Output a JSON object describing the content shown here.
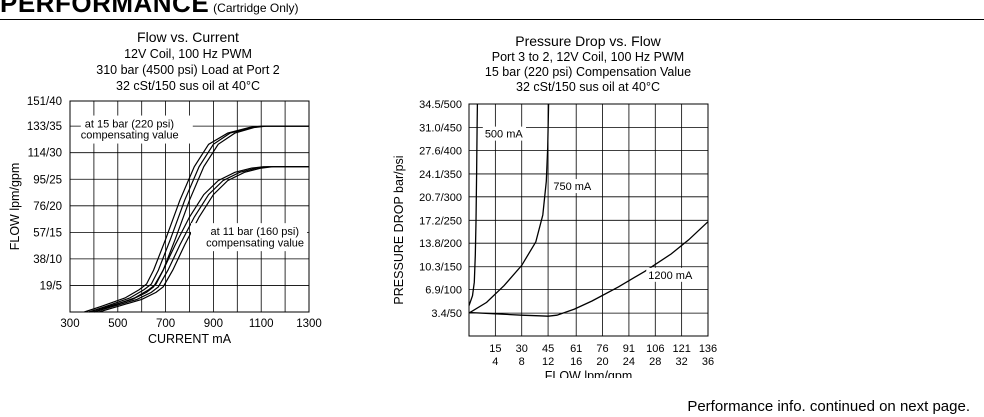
{
  "header": {
    "title": "PERFORMANCE",
    "subtitle": "(Cartridge Only)"
  },
  "footer": {
    "note": "Performance info. continued on next page."
  },
  "colors": {
    "line": "#000000",
    "background": "#ffffff"
  },
  "chart_data": [
    {
      "type": "line",
      "title": "Flow vs. Current",
      "subtitle_lines": [
        "12V Coil, 100 Hz PWM",
        "310 bar (4500 psi) Load at Port 2",
        "32 cSt/150 sus oil at 40°C"
      ],
      "xlabel": "CURRENT  mA",
      "ylabel": "FLOW  lpm/gpm",
      "xlim": [
        300,
        1300
      ],
      "ylim": [
        0,
        151
      ],
      "x_ticks": [
        {
          "value": 300,
          "label": "300"
        },
        {
          "value": 500,
          "label": "500"
        },
        {
          "value": 700,
          "label": "700"
        },
        {
          "value": 900,
          "label": "900"
        },
        {
          "value": 1100,
          "label": "1100"
        },
        {
          "value": 1300,
          "label": "1300"
        }
      ],
      "y_ticks": [
        {
          "value": 19,
          "label": "19/5"
        },
        {
          "value": 38,
          "label": "38/10"
        },
        {
          "value": 57,
          "label": "57/15"
        },
        {
          "value": 76,
          "label": "76/20"
        },
        {
          "value": 95,
          "label": "95/25"
        },
        {
          "value": 114,
          "label": "114/30"
        },
        {
          "value": 133,
          "label": "133/35"
        },
        {
          "value": 151,
          "label": "151/40"
        }
      ],
      "grid": true,
      "annotations": [
        {
          "text": "at 15 bar (220 psi)",
          "x": 320,
          "y": 132
        },
        {
          "text": "compensating value",
          "x": 320,
          "y": 124
        },
        {
          "text": "at 11 bar (160 psi)",
          "x": 1300,
          "y": 55
        },
        {
          "text": "compensating value",
          "x": 1300,
          "y": 47
        }
      ],
      "series": [
        {
          "values": [
            [
              360,
              0
            ],
            [
              430,
              4
            ],
            [
              530,
              10
            ],
            [
              590,
              16
            ],
            [
              620,
              20
            ],
            [
              650,
              30
            ],
            [
              700,
              52
            ],
            [
              760,
              80
            ],
            [
              820,
              104
            ],
            [
              880,
              120
            ],
            [
              960,
              128
            ],
            [
              1050,
              132
            ],
            [
              1100,
              133
            ],
            [
              1300,
              133
            ]
          ]
        },
        {
          "values": [
            [
              380,
              0
            ],
            [
              450,
              4
            ],
            [
              550,
              10
            ],
            [
              610,
              16
            ],
            [
              640,
              20
            ],
            [
              670,
              30
            ],
            [
              720,
              52
            ],
            [
              780,
              80
            ],
            [
              840,
              104
            ],
            [
              900,
              120
            ],
            [
              970,
              128
            ],
            [
              1060,
              132
            ],
            [
              1110,
              133
            ],
            [
              1300,
              133
            ]
          ]
        },
        {
          "values": [
            [
              400,
              0
            ],
            [
              470,
              4
            ],
            [
              570,
              10
            ],
            [
              630,
              16
            ],
            [
              660,
              20
            ],
            [
              690,
              30
            ],
            [
              740,
              52
            ],
            [
              800,
              80
            ],
            [
              860,
              104
            ],
            [
              920,
              120
            ],
            [
              990,
              128
            ],
            [
              1070,
              132
            ],
            [
              1120,
              133
            ],
            [
              1300,
              133
            ]
          ]
        },
        {
          "values": [
            [
              380,
              0
            ],
            [
              460,
              4
            ],
            [
              560,
              9
            ],
            [
              620,
              14
            ],
            [
              650,
              18
            ],
            [
              690,
              30
            ],
            [
              740,
              48
            ],
            [
              800,
              68
            ],
            [
              860,
              84
            ],
            [
              920,
              94
            ],
            [
              990,
              100
            ],
            [
              1060,
              103
            ],
            [
              1110,
              104
            ],
            [
              1300,
              104
            ]
          ]
        },
        {
          "values": [
            [
              400,
              0
            ],
            [
              480,
              4
            ],
            [
              580,
              9
            ],
            [
              640,
              14
            ],
            [
              670,
              18
            ],
            [
              710,
              30
            ],
            [
              760,
              48
            ],
            [
              820,
              68
            ],
            [
              880,
              84
            ],
            [
              940,
              94
            ],
            [
              1010,
              100
            ],
            [
              1080,
              103
            ],
            [
              1130,
              104
            ],
            [
              1300,
              104
            ]
          ]
        },
        {
          "values": [
            [
              420,
              0
            ],
            [
              500,
              4
            ],
            [
              600,
              9
            ],
            [
              660,
              14
            ],
            [
              690,
              18
            ],
            [
              730,
              30
            ],
            [
              780,
              48
            ],
            [
              840,
              68
            ],
            [
              900,
              84
            ],
            [
              960,
              94
            ],
            [
              1030,
              100
            ],
            [
              1100,
              103
            ],
            [
              1150,
              104
            ],
            [
              1300,
              104
            ]
          ]
        }
      ]
    },
    {
      "type": "line",
      "title": "Pressure Drop vs. Flow",
      "subtitle_lines": [
        "Port 3 to 2, 12V Coil, 100 Hz PWM",
        "15 bar (220 psi) Compensation Value",
        "32 cSt/150 sus oil at 40°C"
      ],
      "xlabel": "FLOW lpm/gpm",
      "ylabel": "PRESSURE DROP bar/psi",
      "xlim": [
        0,
        136
      ],
      "ylim": [
        0,
        34.5
      ],
      "x_ticks": [
        {
          "value": 15,
          "top": "15",
          "bottom": "4"
        },
        {
          "value": 30,
          "top": "30",
          "bottom": "8"
        },
        {
          "value": 45,
          "top": "45",
          "bottom": "12"
        },
        {
          "value": 61,
          "top": "61",
          "bottom": "16"
        },
        {
          "value": 76,
          "top": "76",
          "bottom": "20"
        },
        {
          "value": 91,
          "top": "91",
          "bottom": "24"
        },
        {
          "value": 106,
          "top": "106",
          "bottom": "28"
        },
        {
          "value": 121,
          "top": "121",
          "bottom": "32"
        },
        {
          "value": 136,
          "top": "136",
          "bottom": "36"
        }
      ],
      "y_ticks": [
        {
          "value": 3.4,
          "label": "3.4/50"
        },
        {
          "value": 6.9,
          "label": "6.9/100"
        },
        {
          "value": 10.3,
          "label": "10.3/150"
        },
        {
          "value": 13.8,
          "label": "13.8/200"
        },
        {
          "value": 17.2,
          "label": "17.2/250"
        },
        {
          "value": 20.7,
          "label": "20.7/300"
        },
        {
          "value": 24.1,
          "label": "24.1/350"
        },
        {
          "value": 27.6,
          "label": "27.6/400"
        },
        {
          "value": 31.0,
          "label": "31.0/450"
        },
        {
          "value": 34.5,
          "label": "34.5/500"
        }
      ],
      "grid": true,
      "annotations": [
        {
          "text": "500 mA",
          "x": 9,
          "y": 29.5
        },
        {
          "text": "750 mA",
          "x": 48,
          "y": 21.7
        },
        {
          "text": "1200 mA",
          "x": 102,
          "y": 8.5
        }
      ],
      "series": [
        {
          "name": "500 mA",
          "values": [
            [
              0,
              4.5
            ],
            [
              2,
              6
            ],
            [
              3,
              8
            ],
            [
              3.6,
              12
            ],
            [
              4,
              17
            ],
            [
              4.3,
              24
            ],
            [
              4.6,
              31
            ],
            [
              4.8,
              34.5
            ]
          ]
        },
        {
          "name": "750 mA",
          "values": [
            [
              0,
              3.4
            ],
            [
              10,
              5
            ],
            [
              20,
              7.5
            ],
            [
              30,
              10.5
            ],
            [
              38,
              14
            ],
            [
              42,
              18
            ],
            [
              44,
              23
            ],
            [
              44.8,
              28
            ],
            [
              45.3,
              34.5
            ]
          ]
        },
        {
          "name": "1200 mA",
          "values": [
            [
              0,
              3.5
            ],
            [
              15,
              3.3
            ],
            [
              30,
              3.1
            ],
            [
              40,
              3.0
            ],
            [
              45,
              2.95
            ],
            [
              50,
              3.1
            ],
            [
              60,
              4.0
            ],
            [
              70,
              5.2
            ],
            [
              85,
              7.3
            ],
            [
              100,
              9.6
            ],
            [
              115,
              12.2
            ],
            [
              125,
              14.3
            ],
            [
              136,
              17.0
            ]
          ]
        }
      ]
    }
  ]
}
